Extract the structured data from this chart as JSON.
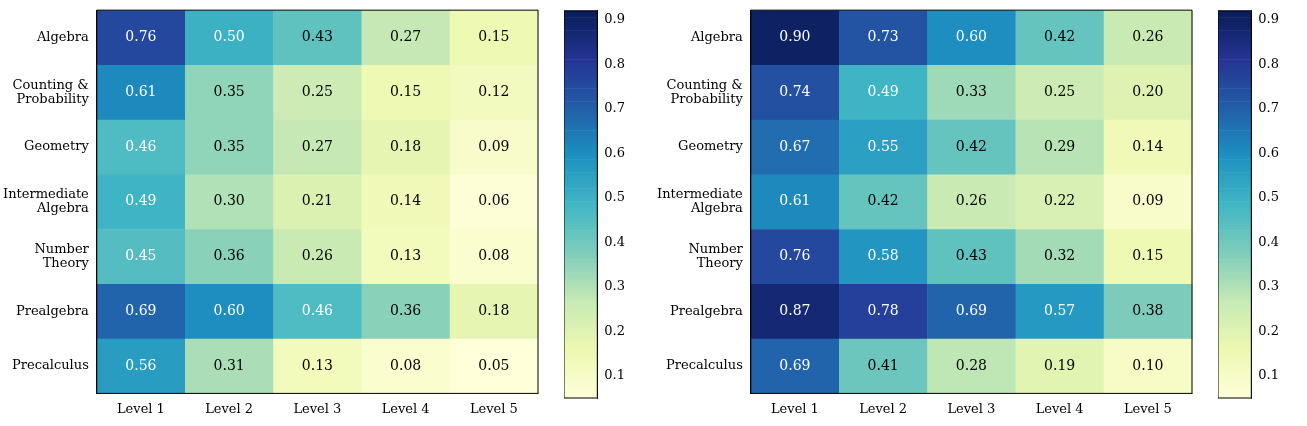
{
  "chart_data": [
    {
      "type": "heatmap",
      "categories": [
        "Level 1",
        "Level 2",
        "Level 3",
        "Level 4",
        "Level 5"
      ],
      "y_categories": [
        "Algebra",
        "Counting &\nProbability",
        "Geometry",
        "Intermediate\nAlgebra",
        "Number\nTheory",
        "Prealgebra",
        "Precalculus"
      ],
      "cells": [
        [
          0.76,
          0.5,
          0.43,
          0.27,
          0.15
        ],
        [
          0.61,
          0.35,
          0.25,
          0.15,
          0.12
        ],
        [
          0.46,
          0.35,
          0.27,
          0.18,
          0.09
        ],
        [
          0.49,
          0.3,
          0.21,
          0.14,
          0.06
        ],
        [
          0.45,
          0.36,
          0.26,
          0.13,
          0.08
        ],
        [
          0.69,
          0.6,
          0.46,
          0.36,
          0.18
        ],
        [
          0.56,
          0.31,
          0.13,
          0.08,
          0.05
        ]
      ],
      "cell_labels": [
        [
          "0.76",
          "0.50",
          "0.43",
          "0.27",
          "0.15"
        ],
        [
          "0.61",
          "0.35",
          "0.25",
          "0.15",
          "0.12"
        ],
        [
          "0.46",
          "0.35",
          "0.27",
          "0.18",
          "0.09"
        ],
        [
          "0.49",
          "0.30",
          "0.21",
          "0.14",
          "0.06"
        ],
        [
          "0.45",
          "0.36",
          "0.26",
          "0.13",
          "0.08"
        ],
        [
          "0.69",
          "0.60",
          "0.46",
          "0.36",
          "0.18"
        ],
        [
          "0.56",
          "0.31",
          "0.13",
          "0.08",
          "0.05"
        ]
      ],
      "clim": [
        0.05,
        0.92
      ],
      "cticks": [
        0.1,
        0.2,
        0.3,
        0.4,
        0.5,
        0.6,
        0.7,
        0.8,
        0.9
      ]
    },
    {
      "type": "heatmap",
      "categories": [
        "Level 1",
        "Level 2",
        "Level 3",
        "Level 4",
        "Level 5"
      ],
      "y_categories": [
        "Algebra",
        "Counting &\nProbability",
        "Geometry",
        "Intermediate\nAlgebra",
        "Number\nTheory",
        "Prealgebra",
        "Precalculus"
      ],
      "cells": [
        [
          0.9,
          0.73,
          0.6,
          0.42,
          0.26
        ],
        [
          0.74,
          0.49,
          0.33,
          0.25,
          0.2
        ],
        [
          0.67,
          0.55,
          0.42,
          0.29,
          0.14
        ],
        [
          0.61,
          0.42,
          0.26,
          0.22,
          0.09
        ],
        [
          0.76,
          0.58,
          0.43,
          0.32,
          0.15
        ],
        [
          0.87,
          0.78,
          0.69,
          0.57,
          0.38
        ],
        [
          0.69,
          0.41,
          0.28,
          0.19,
          0.1
        ]
      ],
      "cell_labels": [
        [
          "0.90",
          "0.73",
          "0.60",
          "0.42",
          "0.26"
        ],
        [
          "0.74",
          "0.49",
          "0.33",
          "0.25",
          "0.20"
        ],
        [
          "0.67",
          "0.55",
          "0.42",
          "0.29",
          "0.14"
        ],
        [
          "0.61",
          "0.42",
          "0.26",
          "0.22",
          "0.09"
        ],
        [
          "0.76",
          "0.58",
          "0.43",
          "0.32",
          "0.15"
        ],
        [
          "0.87",
          "0.78",
          "0.69",
          "0.57",
          "0.38"
        ],
        [
          "0.69",
          "0.41",
          "0.28",
          "0.19",
          "0.10"
        ]
      ],
      "clim": [
        0.05,
        0.92
      ],
      "cticks": [
        0.1,
        0.2,
        0.3,
        0.4,
        0.5,
        0.6,
        0.7,
        0.8,
        0.9
      ]
    }
  ]
}
